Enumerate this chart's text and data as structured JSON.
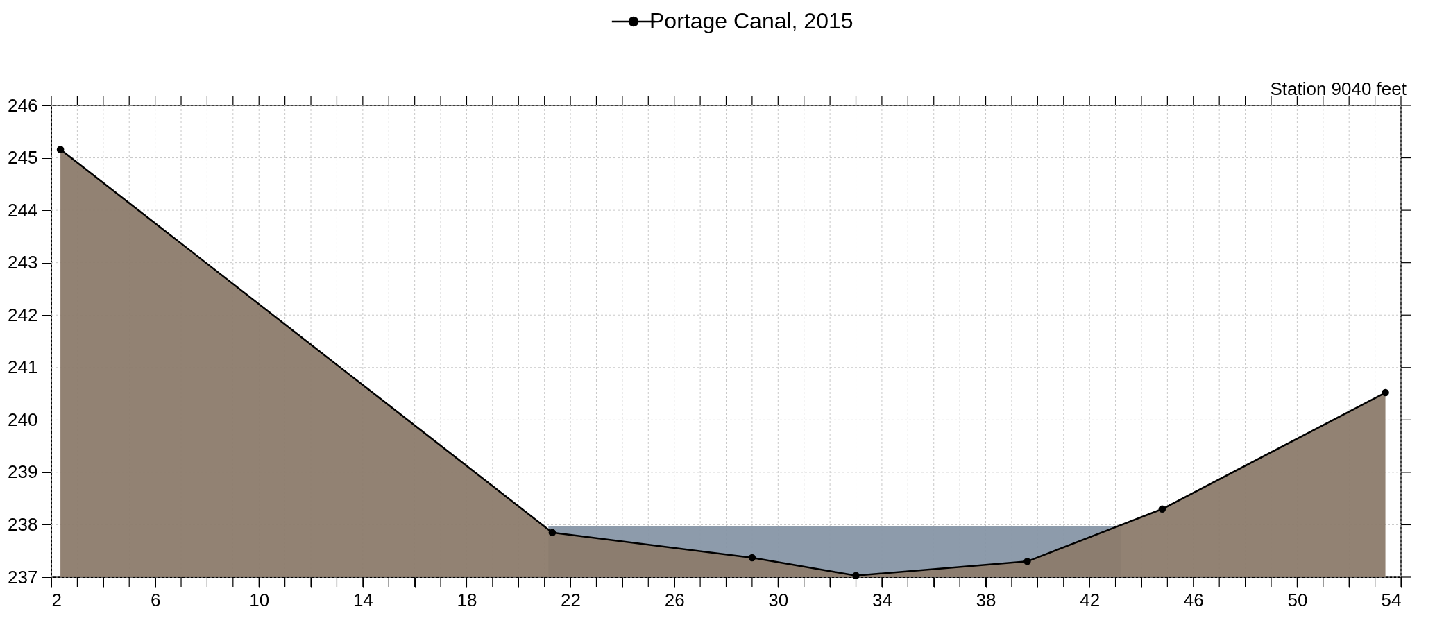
{
  "chart_data": {
    "type": "area",
    "annotations": [
      "Station 9040 feet"
    ],
    "series": [
      {
        "color": "#8796a6",
        "x": [
          21.15,
          43.2
        ],
        "values": [
          237.97,
          237.97
        ]
      },
      {
        "name": "Portage Canal, 2015",
        "marker": "circle",
        "color": "#8c7b6c",
        "x": [
          2.35,
          21.3,
          29.0,
          33.0,
          39.6,
          44.8,
          53.4
        ],
        "values": [
          245.16,
          237.85,
          237.37,
          237.03,
          237.3,
          238.3,
          240.52
        ]
      }
    ],
    "xlim": [
      2,
      54
    ],
    "xticks": [
      2,
      {
        "value": 3,
        "label": null
      },
      {
        "value": 4,
        "label": null
      },
      {
        "value": 5,
        "label": null
      },
      6,
      {
        "value": 7,
        "label": null
      },
      {
        "value": 8,
        "label": null
      },
      {
        "value": 9,
        "label": null
      },
      10,
      {
        "value": 11,
        "label": null
      },
      {
        "value": 12,
        "label": null
      },
      {
        "value": 13,
        "label": null
      },
      14,
      {
        "value": 15,
        "label": null
      },
      {
        "value": 16,
        "label": null
      },
      {
        "value": 17,
        "label": null
      },
      18,
      {
        "value": 19,
        "label": null
      },
      {
        "value": 20,
        "label": null
      },
      {
        "value": 21,
        "label": null
      },
      22,
      {
        "value": 23,
        "label": null
      },
      {
        "value": 24,
        "label": null
      },
      {
        "value": 25,
        "label": null
      },
      26,
      {
        "value": 27,
        "label": null
      },
      {
        "value": 28,
        "label": null
      },
      {
        "value": 29,
        "label": null
      },
      30,
      {
        "value": 31,
        "label": null
      },
      {
        "value": 32,
        "label": null
      },
      {
        "value": 33,
        "label": null
      },
      34,
      {
        "value": 35,
        "label": null
      },
      {
        "value": 36,
        "label": null
      },
      {
        "value": 37,
        "label": null
      },
      38,
      {
        "value": 39,
        "label": null
      },
      {
        "value": 40,
        "label": null
      },
      {
        "value": 41,
        "label": null
      },
      42,
      {
        "value": 43,
        "label": null
      },
      {
        "value": 44,
        "label": null
      },
      {
        "value": 45,
        "label": null
      },
      46,
      {
        "value": 47,
        "label": null
      },
      {
        "value": 48,
        "label": null
      },
      {
        "value": 49,
        "label": null
      },
      50,
      {
        "value": 51,
        "label": null
      },
      {
        "value": 52,
        "label": null
      },
      {
        "value": 53,
        "label": null
      },
      54
    ],
    "ylim": [
      237,
      246
    ],
    "yticks": [
      237,
      238,
      239,
      240,
      241,
      242,
      243,
      244,
      245,
      246
    ],
    "grid": true,
    "legend": "top"
  }
}
